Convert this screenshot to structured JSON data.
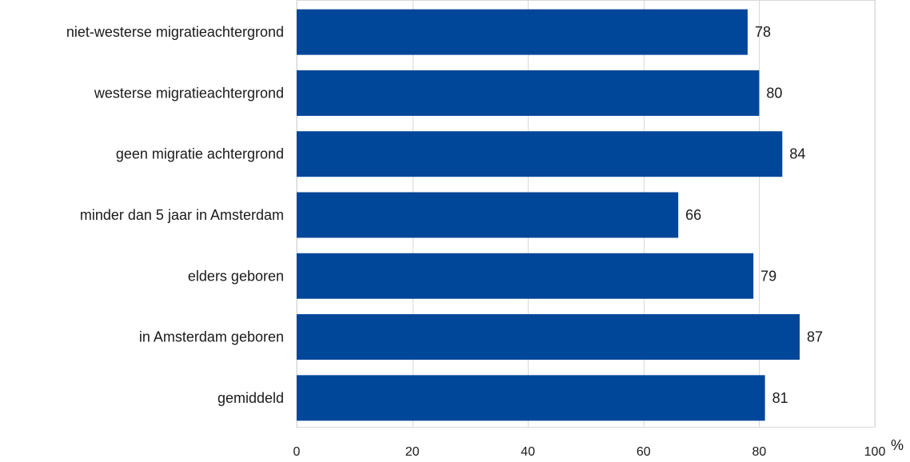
{
  "chart_data": {
    "type": "bar",
    "orientation": "horizontal",
    "categories": [
      "niet-westerse migratieachtergrond",
      "westerse migratieachtergrond",
      "geen migratie achtergrond",
      "minder dan 5 jaar in Amsterdam",
      "elders geboren",
      "in Amsterdam geboren",
      "gemiddeld"
    ],
    "values": [
      78,
      80,
      84,
      66,
      79,
      87,
      81
    ],
    "value_labels": [
      "78",
      "80",
      "84",
      "66",
      "79",
      "87",
      "81"
    ],
    "xticks": [
      0,
      20,
      40,
      60,
      80,
      100
    ],
    "xtick_labels": [
      "0",
      "20",
      "40",
      "60",
      "80",
      "100"
    ],
    "xlim": [
      0,
      100
    ],
    "xlabel": "%",
    "grid": true,
    "bar_color": "#004699"
  }
}
